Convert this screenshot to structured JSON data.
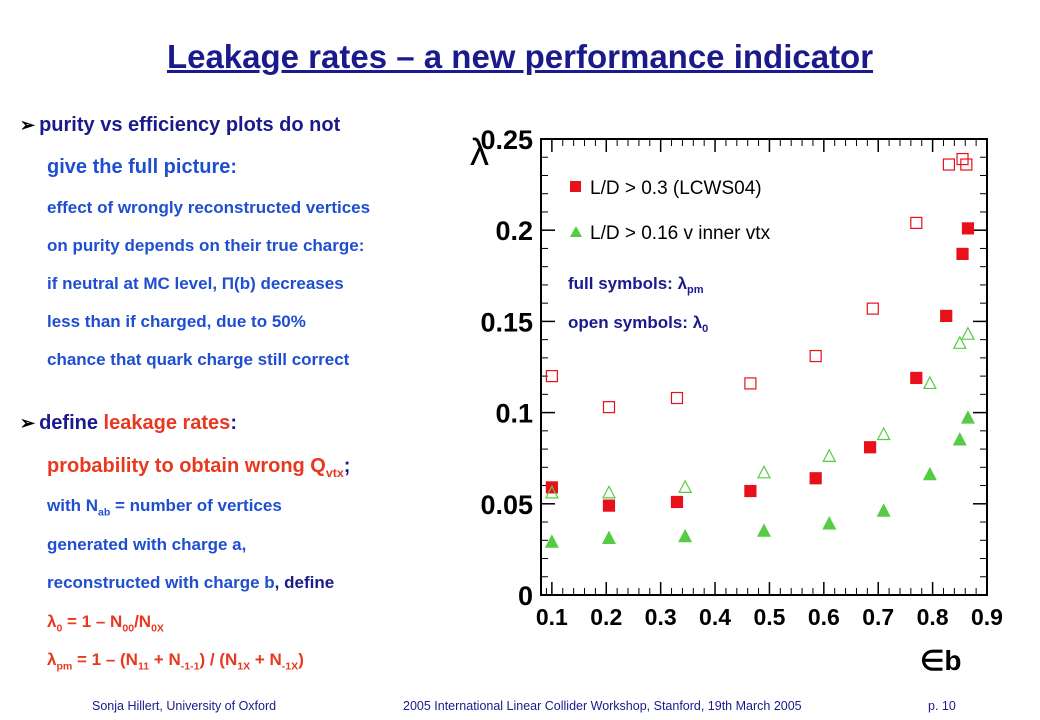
{
  "slide": {
    "title": "Leakage rates – a new performance indicator",
    "bullets": {
      "b1_line1": "purity vs efficiency plots do not",
      "b1_line2": "give the full picture:",
      "b1_lines": [
        "effect of wrongly reconstructed vertices",
        "on purity depends on their true charge:",
        "if neutral at MC level, Π(b) decreases",
        "less than if charged, due to 50%",
        "chance that quark charge still correct"
      ],
      "b2_pre": "define ",
      "b2_red": "leakage rates",
      "b2_post": ":",
      "b2_prob_a": "probability to obtain wrong Q",
      "b2_prob_sub": "vtx",
      "b2_prob_semi": ";",
      "b2_nab_a": "with N",
      "b2_nab_sub": "ab",
      "b2_nab_b": " = number of vertices",
      "b2_line3": "generated with charge a,",
      "b2_line4a": "reconstructed with charge b",
      "b2_line4b": ", define",
      "formula1_lambda": "λ",
      "formula1_sub": "0",
      "formula1_a": " = 1 – N",
      "formula1_sub2": "00",
      "formula1_b": "/N",
      "formula1_sub3": "0X",
      "formula2_lambda": "λ",
      "formula2_sub": "pm",
      "formula2_a": " = 1 – (N",
      "formula2_s1": "11",
      "formula2_b": " + N",
      "formula2_s2": "-1-1",
      "formula2_c": ") / (N",
      "formula2_s3": "1X",
      "formula2_d": " + N",
      "formula2_s4": "-1X",
      "formula2_e": ")"
    },
    "footer": {
      "left": "Sonja Hillert, University of Oxford",
      "center": "2005 International Linear Collider Workshop, Stanford, 19th March 2005",
      "right": "p. 10"
    }
  },
  "chart_data": {
    "type": "scatter",
    "xlabel": "∈b",
    "ylabel": "λ",
    "xlim": [
      0.08,
      0.9
    ],
    "ylim": [
      0,
      0.25
    ],
    "xticks": [
      "0.1",
      "0.2",
      "0.3",
      "0.4",
      "0.5",
      "0.6",
      "0.7",
      "0.8",
      "0.9"
    ],
    "yticks": [
      "0",
      "0.05",
      "0.1",
      "0.15",
      "0.2",
      "0.25"
    ],
    "legend": {
      "placement": "top-left",
      "entries": [
        {
          "label": "L/D > 0.3 (LCWS04)",
          "color": "#e8101a",
          "marker": "square"
        },
        {
          "label": "L/D > 0.16 v inner vtx",
          "color": "#55cc44",
          "marker": "triangle"
        }
      ]
    },
    "annotations": {
      "full_a": "full symbols: ",
      "full_lambda": "λ",
      "full_sub": "pm",
      "open_a": "open symbols: ",
      "open_lambda": "λ",
      "open_sub": "0"
    },
    "series": [
      {
        "name": "L/D > 0.3 (LCWS04)",
        "symbol": "λpm",
        "color": "#e8101a",
        "marker": "square",
        "filled": true,
        "x": [
          0.1,
          0.205,
          0.33,
          0.465,
          0.585,
          0.685,
          0.77,
          0.825,
          0.855,
          0.865
        ],
        "y": [
          0.059,
          0.049,
          0.051,
          0.057,
          0.064,
          0.081,
          0.119,
          0.153,
          0.187,
          0.201
        ]
      },
      {
        "name": "L/D > 0.3 (LCWS04)",
        "symbol": "λ0",
        "color": "#e8101a",
        "marker": "square",
        "filled": false,
        "x": [
          0.1,
          0.205,
          0.33,
          0.465,
          0.585,
          0.69,
          0.77,
          0.83,
          0.855,
          0.862
        ],
        "y": [
          0.12,
          0.103,
          0.108,
          0.116,
          0.131,
          0.157,
          0.204,
          0.236,
          0.239,
          0.236
        ]
      },
      {
        "name": "L/D > 0.16 v inner vtx",
        "symbol": "λpm",
        "color": "#55cc44",
        "marker": "triangle",
        "filled": true,
        "x": [
          0.1,
          0.205,
          0.345,
          0.49,
          0.61,
          0.71,
          0.795,
          0.85,
          0.865
        ],
        "y": [
          0.029,
          0.031,
          0.032,
          0.035,
          0.039,
          0.046,
          0.066,
          0.085,
          0.097
        ]
      },
      {
        "name": "L/D > 0.16 v inner vtx",
        "symbol": "λ0",
        "color": "#55cc44",
        "marker": "triangle",
        "filled": false,
        "x": [
          0.1,
          0.205,
          0.345,
          0.49,
          0.61,
          0.71,
          0.795,
          0.85,
          0.865
        ],
        "y": [
          0.056,
          0.056,
          0.059,
          0.067,
          0.076,
          0.088,
          0.116,
          0.138,
          0.143
        ]
      }
    ]
  }
}
